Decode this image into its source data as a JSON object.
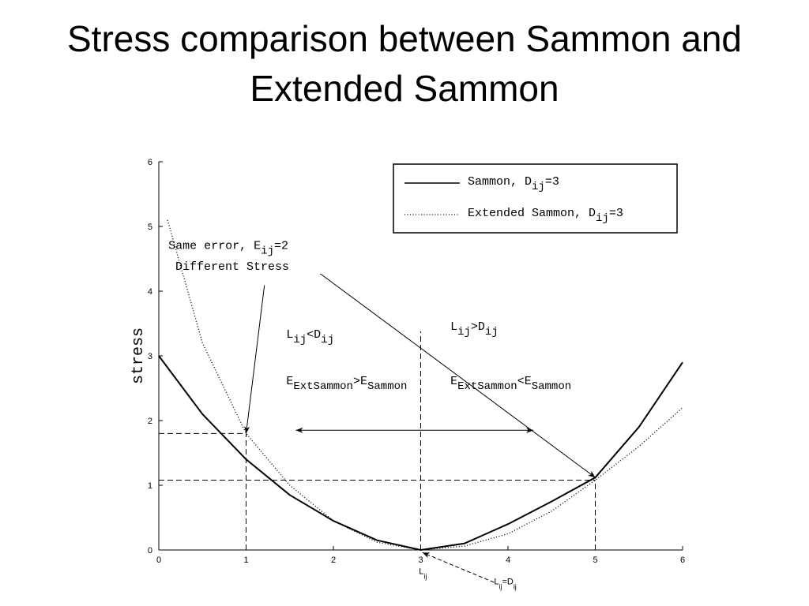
{
  "chart_data": {
    "type": "line",
    "title": "Stress comparison between Sammon and Extended Sammon",
    "y_label": "stress",
    "xlim": [
      0,
      6
    ],
    "ylim": [
      0,
      6
    ],
    "xticks": [
      0,
      1,
      2,
      3,
      4,
      5,
      6
    ],
    "yticks": [
      0,
      1,
      2,
      3,
      4,
      5,
      6
    ],
    "legend": "upper right",
    "series": [
      {
        "name": [
          "Sammon, D",
          "ij",
          "=3"
        ],
        "color": "#000000",
        "style": "solid",
        "x": [
          0,
          0.5,
          1,
          1.5,
          2,
          2.5,
          3,
          3.5,
          4,
          4.5,
          5,
          5.5,
          6
        ],
        "values": [
          3.0,
          2.1,
          1.4,
          0.85,
          0.45,
          0.15,
          0,
          0.1,
          0.4,
          0.75,
          1.12,
          1.9,
          2.9
        ]
      },
      {
        "name": [
          "Extended Sammon, D",
          "ij",
          "=3"
        ],
        "color": "#000000",
        "style": "dotted",
        "x": [
          0.1,
          0.5,
          1,
          1.5,
          2,
          2.5,
          3,
          3.5,
          4,
          4.5,
          5,
          5.5,
          6
        ],
        "values": [
          5.1,
          3.2,
          1.8,
          1.0,
          0.45,
          0.12,
          0,
          0.06,
          0.25,
          0.6,
          1.08,
          1.6,
          2.2
        ]
      }
    ],
    "guides": [
      {
        "x1": 0,
        "y1": 1.8,
        "x2": 1,
        "y2": 1.8
      },
      {
        "x1": 1,
        "y1": 0,
        "x2": 1,
        "y2": 1.8
      },
      {
        "x1": 0,
        "y1": 1.08,
        "x2": 5,
        "y2": 1.08
      },
      {
        "x1": 5,
        "y1": 0,
        "x2": 5,
        "y2": 1.08
      },
      {
        "x1": 3,
        "y1": 0,
        "x2": 3,
        "y2": 3.38
      }
    ],
    "arrows": [
      {
        "from": [
          1.21,
          4.09
        ],
        "to": [
          1.0,
          1.8
        ],
        "dashed": false,
        "both": false
      },
      {
        "from": [
          1.85,
          4.27
        ],
        "to": [
          5.0,
          1.12
        ],
        "dashed": false,
        "both": false
      },
      {
        "from": [
          1.57,
          1.85
        ],
        "to": [
          4.29,
          1.85
        ],
        "dashed": false,
        "both": true
      },
      {
        "from": [
          3.84,
          -0.5
        ],
        "to": [
          3.02,
          -0.04
        ],
        "dashed": true,
        "both": false
      }
    ],
    "annotations": [
      {
        "parts": [
          "Same error,  E",
          "ij",
          "=2"
        ],
        "x": 0.11,
        "y": 4.65,
        "font": "mono"
      },
      {
        "parts": [
          "Different Stress"
        ],
        "x": 0.19,
        "y": 4.33,
        "font": "mono"
      },
      {
        "parts": [
          "L",
          "ij",
          "<D",
          "ij"
        ],
        "x": 1.46,
        "y": 3.28,
        "font": "mono"
      },
      {
        "parts": [
          "E",
          "ExtSammon",
          ">E",
          "Sammon"
        ],
        "x": 1.46,
        "y": 2.56,
        "font": "mono"
      },
      {
        "parts": [
          "L",
          "ij",
          ">D",
          "ij"
        ],
        "x": 3.34,
        "y": 3.4,
        "font": "mono"
      },
      {
        "parts": [
          "E",
          "ExtSammon",
          "<E",
          "Sammon"
        ],
        "x": 3.34,
        "y": 2.56,
        "font": "mono"
      },
      {
        "parts": [
          "L",
          "ij"
        ],
        "x": 2.98,
        "y": -0.37,
        "font": "sans"
      },
      {
        "parts": [
          "L",
          "ij",
          "=D",
          "ij"
        ],
        "x": 3.84,
        "y": -0.53,
        "font": "sans"
      }
    ]
  }
}
